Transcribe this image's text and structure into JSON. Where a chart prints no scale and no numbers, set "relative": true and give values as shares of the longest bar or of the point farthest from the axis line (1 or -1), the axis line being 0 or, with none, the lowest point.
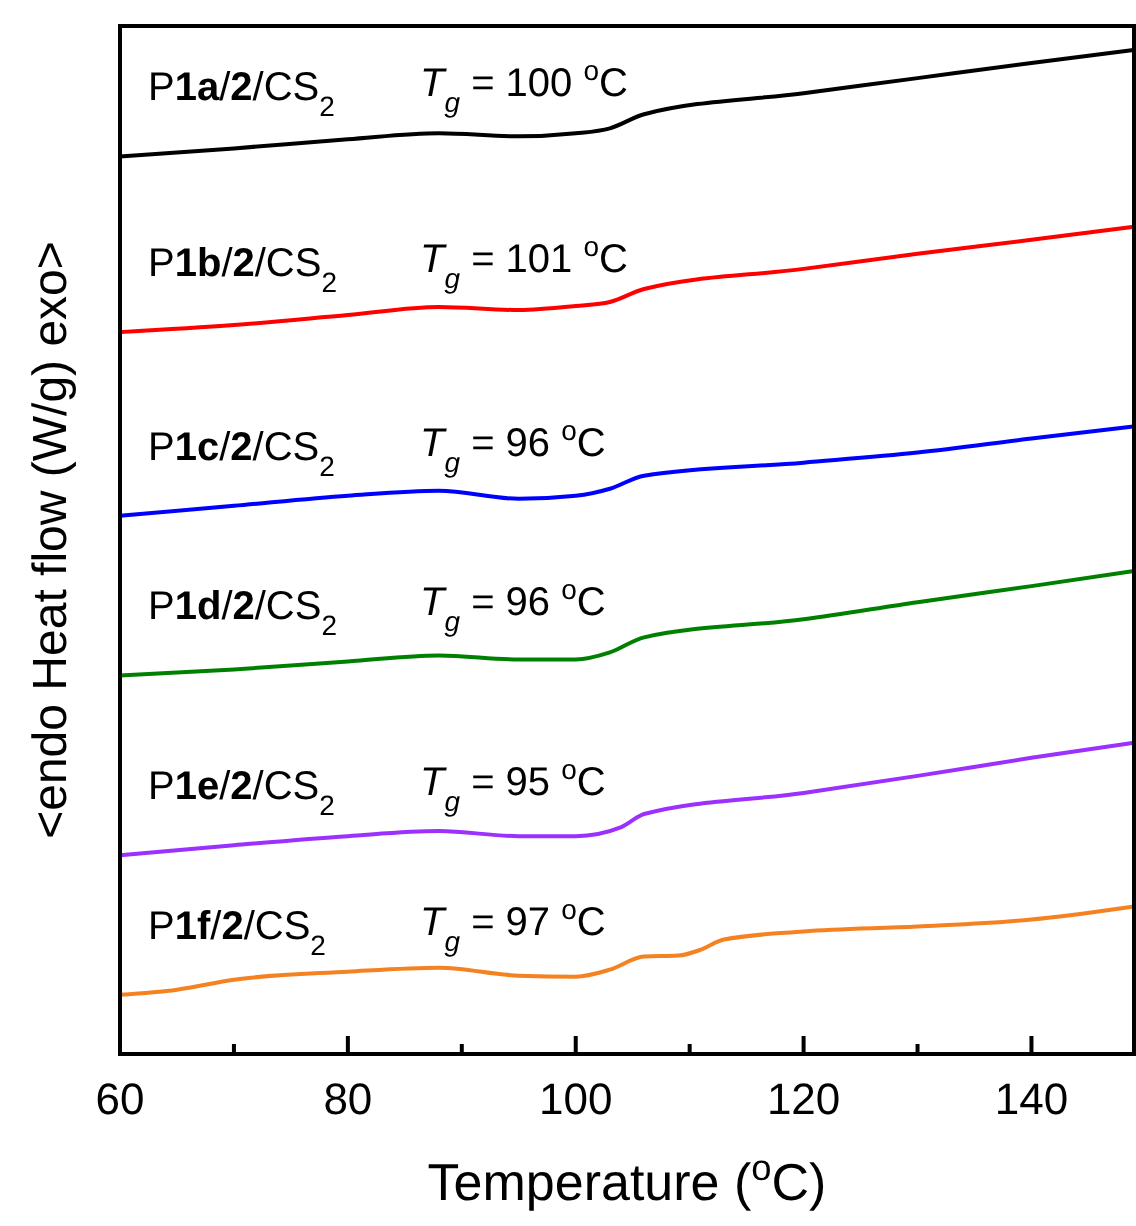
{
  "chart_data": {
    "type": "line",
    "relative": true,
    "xlabel": "Temperature ($^{o}$C)",
    "ylabel": "<endo Heat flow (W/g) exo>",
    "xlim": [
      60,
      149
    ],
    "xticks": [
      60,
      {
        "value": 70,
        "label": null
      },
      80,
      {
        "value": 90,
        "label": null
      },
      100,
      {
        "value": 110,
        "label": null
      },
      120,
      {
        "value": 130,
        "label": null
      },
      140
    ],
    "grid": false,
    "series": [
      {
        "name": "P1a/2/CS$_{2}$",
        "color": "#000000",
        "x": [
          60,
          70,
          80,
          88,
          95,
          100,
          103,
          106,
          120,
          130,
          140,
          149
        ],
        "values": [
          0.894,
          0.902,
          0.911,
          0.917,
          0.914,
          0.917,
          0.922,
          0.936,
          0.957,
          0.972,
          0.987,
          1.0
        ]
      },
      {
        "name": "P1b/2/CS$_{2}$",
        "color": "#ff0000",
        "x": [
          60,
          70,
          80,
          88,
          95,
          100,
          103,
          106,
          120,
          130,
          140,
          149
        ],
        "values": [
          0.719,
          0.726,
          0.736,
          0.744,
          0.741,
          0.745,
          0.749,
          0.762,
          0.782,
          0.797,
          0.811,
          0.824
        ]
      },
      {
        "name": "P1c/2/CS$_{2}$",
        "color": "#0000ff",
        "x": [
          60,
          70,
          80,
          88,
          95,
          100,
          103,
          106,
          120,
          130,
          140,
          149
        ],
        "values": [
          0.536,
          0.546,
          0.556,
          0.561,
          0.553,
          0.556,
          0.563,
          0.576,
          0.589,
          0.599,
          0.613,
          0.625
        ]
      },
      {
        "name": "P1d/2/CS$_{2}$",
        "color": "#008000",
        "x": [
          60,
          70,
          80,
          88,
          95,
          100,
          103,
          106,
          120,
          130,
          140,
          149
        ],
        "values": [
          0.377,
          0.383,
          0.391,
          0.397,
          0.393,
          0.393,
          0.4,
          0.415,
          0.433,
          0.45,
          0.466,
          0.481
        ]
      },
      {
        "name": "P1e/2/CS$_{2}$",
        "color": "#9b30ff",
        "x": [
          60,
          70,
          80,
          88,
          95,
          100,
          104,
          106,
          120,
          130,
          140,
          149
        ],
        "values": [
          0.198,
          0.208,
          0.217,
          0.222,
          0.217,
          0.217,
          0.226,
          0.239,
          0.26,
          0.277,
          0.295,
          0.31
        ]
      },
      {
        "name": "P1f/2/CS$_{2}$",
        "color": "#f58220",
        "x": [
          60,
          65,
          70,
          80,
          88,
          95,
          100,
          103,
          106,
          109,
          111,
          113,
          120,
          130,
          140,
          149
        ],
        "values": [
          0.059,
          0.064,
          0.074,
          0.082,
          0.086,
          0.078,
          0.077,
          0.084,
          0.097,
          0.098,
          0.104,
          0.114,
          0.122,
          0.127,
          0.134,
          0.147
        ]
      }
    ],
    "annotations": [
      "T$_{g}$ = 100 $^{o}$C",
      "T$_{g}$ = 101 $^{o}$C",
      "T$_{g}$ = 96 $^{o}$C",
      "T$_{g}$ = 96 $^{o}$C",
      "T$_{g}$ = 95 $^{o}$C",
      "T$_{g}$ = 97 $^{o}$C"
    ]
  }
}
